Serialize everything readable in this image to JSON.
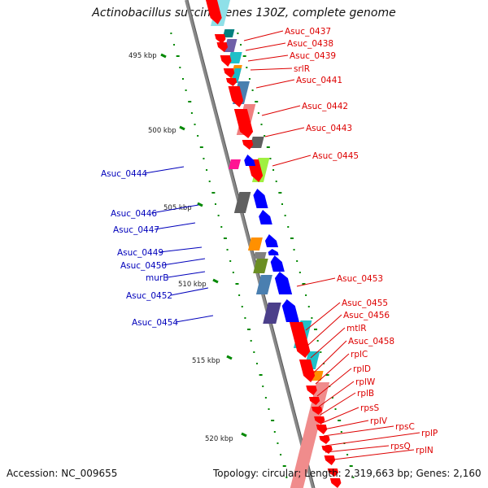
{
  "title": "Actinobacillus succinogenes 130Z, complete genome",
  "footer": {
    "accession_text": "Accession: NC_009655",
    "summary_text": "Topology: circular; Length: 2,319,663 bp; Genes: 2,160"
  },
  "scale_labels": [
    "495 kbp",
    "500 kbp",
    "505 kbp",
    "510 kbp",
    "515 kbp",
    "520 kbp"
  ],
  "forward_gene_labels": [
    "Asuc_0437",
    "Asuc_0438",
    "Asuc_0439",
    "srlR",
    "Asuc_0441",
    "Asuc_0442",
    "Asuc_0443",
    "Asuc_0445",
    "Asuc_0453",
    "Asuc_0455",
    "Asuc_0456",
    "mtlR",
    "Asuc_0458",
    "rplC",
    "rplD",
    "rplW",
    "rplB",
    "rpsS",
    "rplV",
    "rpsC",
    "rplP",
    "rpsQ",
    "rplN"
  ],
  "reverse_gene_labels": [
    "Asuc_0444",
    "Asuc_0446",
    "Asuc_0447",
    "Asuc_0449",
    "Asuc_0450",
    "murB",
    "Asuc_0452",
    "Asuc_0454"
  ],
  "colors": {
    "forward_strand": "#ff0000",
    "reverse_strand": "#0000ff",
    "backbone": "#888888",
    "tick": "#008800"
  }
}
